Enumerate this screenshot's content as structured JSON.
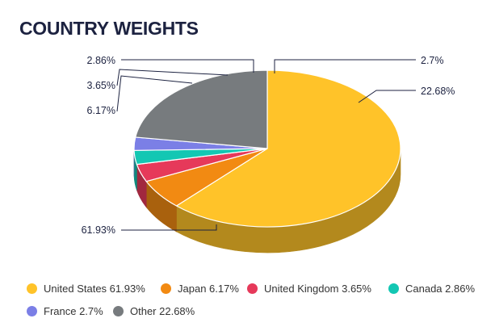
{
  "title": "COUNTRY WEIGHTS",
  "chart_data": {
    "type": "pie",
    "title": "COUNTRY WEIGHTS",
    "slices": [
      {
        "label": "United States",
        "value": 61.93,
        "display": "61.93%",
        "color": "#ffc329"
      },
      {
        "label": "Japan",
        "value": 6.17,
        "display": "6.17%",
        "color": "#f28a12"
      },
      {
        "label": "United Kingdom",
        "value": 3.65,
        "display": "3.65%",
        "color": "#e6395a"
      },
      {
        "label": "Canada",
        "value": 2.86,
        "display": "2.86%",
        "color": "#13c7b3"
      },
      {
        "label": "France",
        "value": 2.7,
        "display": "2.7%",
        "color": "#7b7fe6"
      },
      {
        "label": "Other",
        "value": 22.68,
        "display": "22.68%",
        "color": "#777b7e"
      }
    ],
    "legend_placement": "bottom"
  },
  "legend": [
    {
      "text": "United States 61.93%",
      "color": "#ffc329"
    },
    {
      "text": "Japan 6.17%",
      "color": "#f28a12"
    },
    {
      "text": "United Kingdom 3.65%",
      "color": "#e6395a"
    },
    {
      "text": "Canada 2.86%",
      "color": "#13c7b3"
    },
    {
      "text": "France 2.7%",
      "color": "#7b7fe6"
    },
    {
      "text": "Other 22.68%",
      "color": "#777b7e"
    }
  ]
}
